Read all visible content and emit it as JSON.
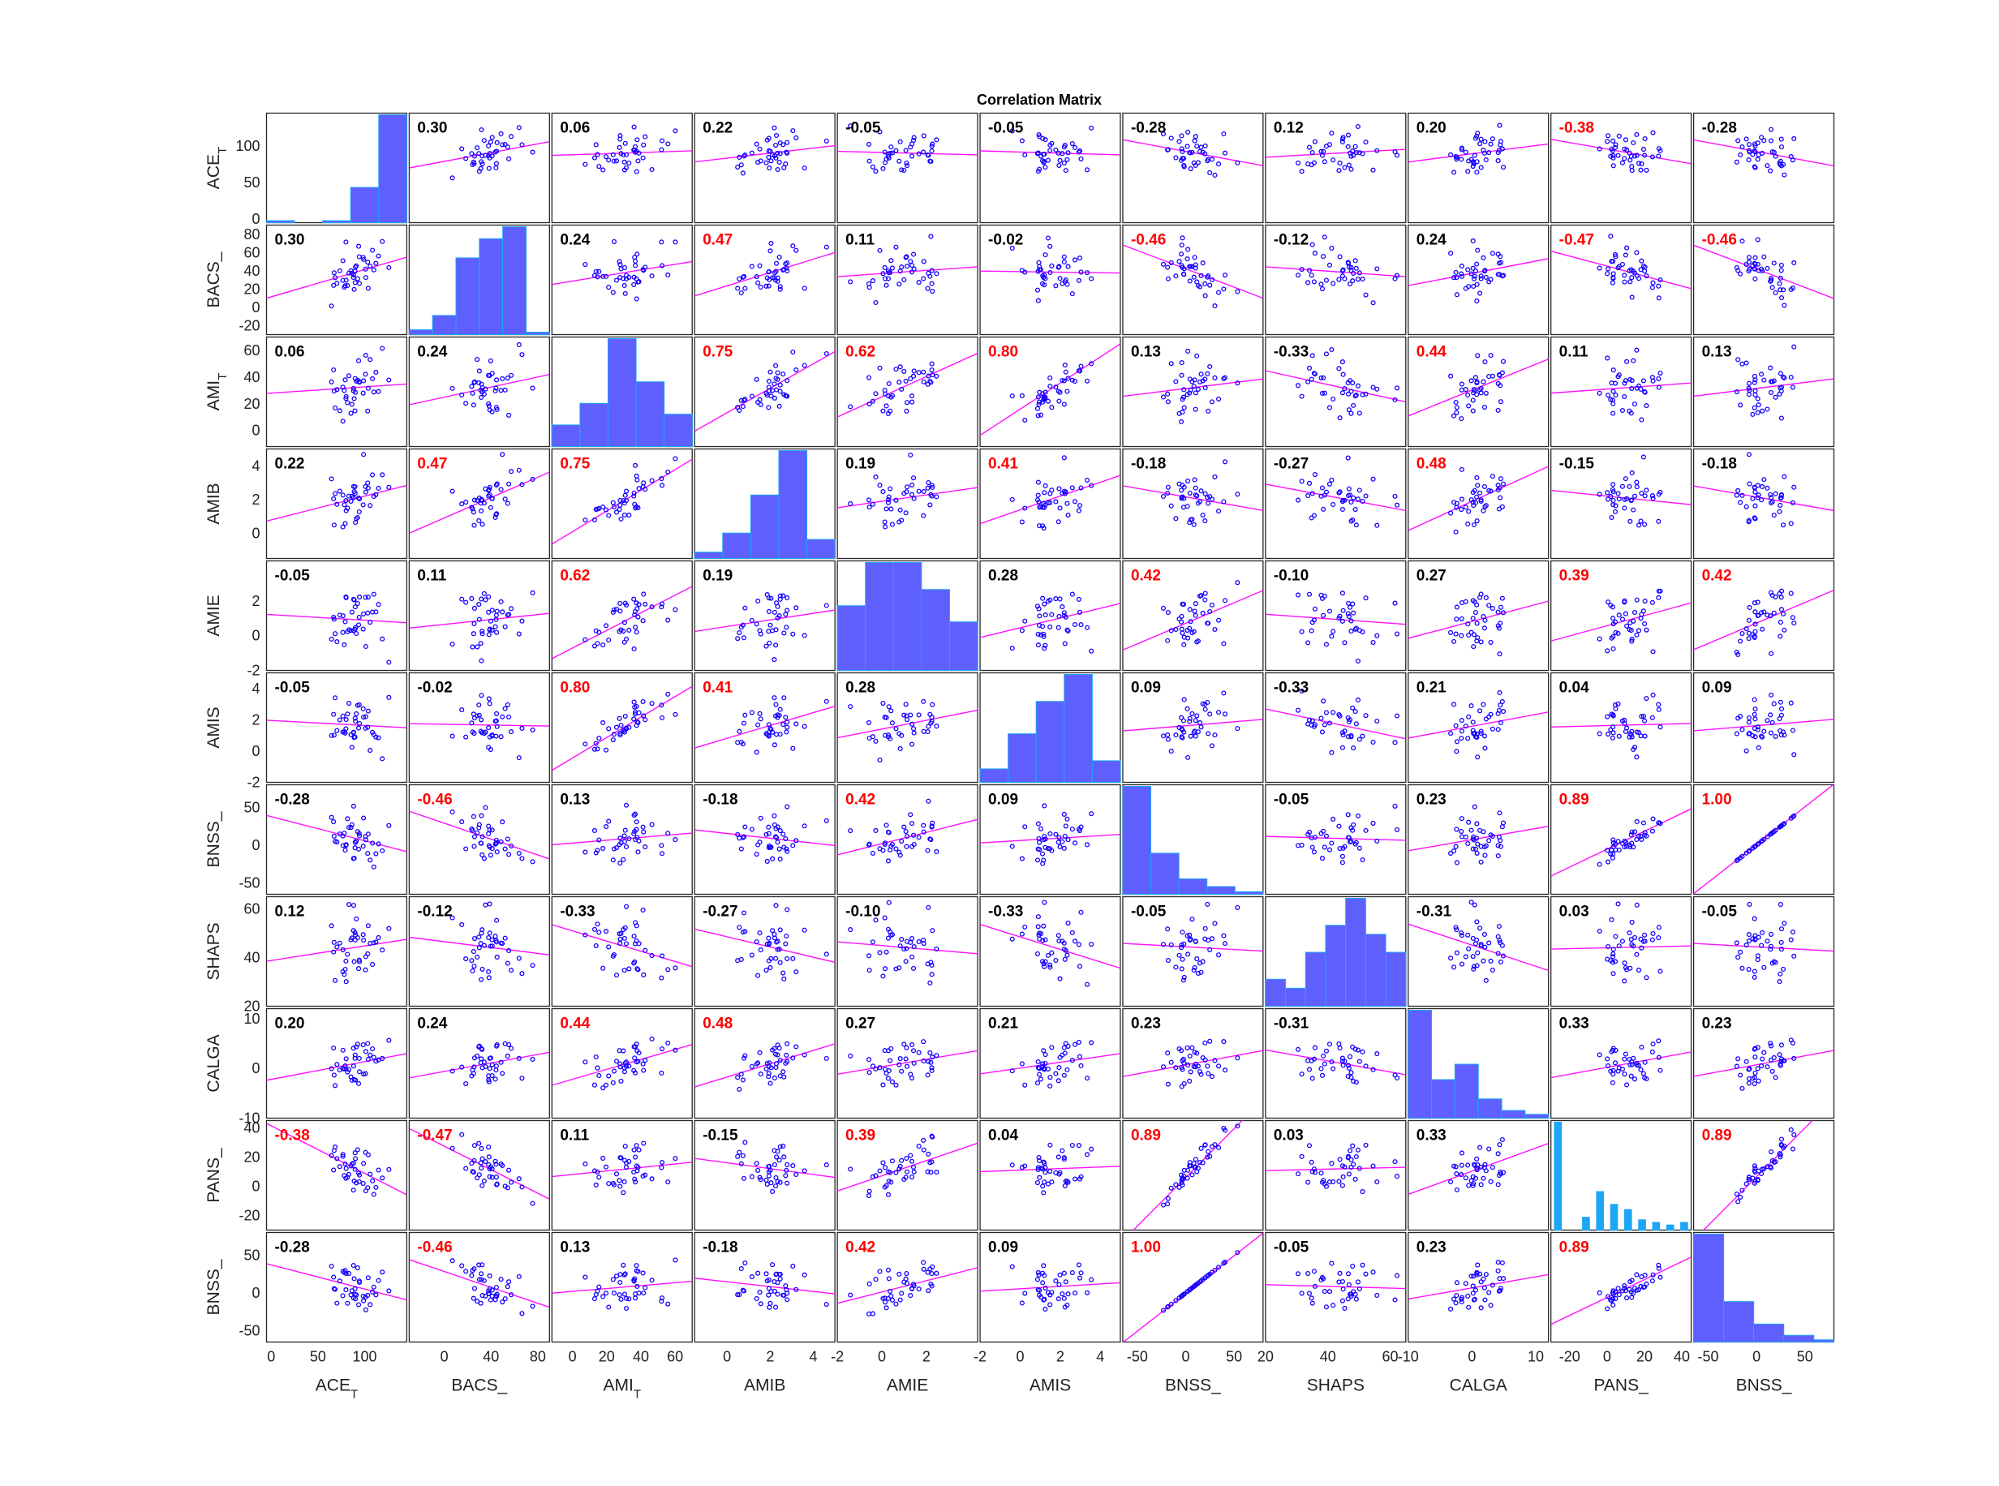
{
  "figure": {
    "title": "Correlation Matrix"
  },
  "chart_data": {
    "type": "scatter-matrix",
    "title": "Correlation Matrix",
    "variables": [
      {
        "name": "ACE_T",
        "base": "ACE",
        "sub": "T"
      },
      {
        "name": "BACS_",
        "base": "BACS_",
        "sub": ""
      },
      {
        "name": "AMI_T",
        "base": "AMI",
        "sub": "T"
      },
      {
        "name": "AMIB",
        "base": "AMIB",
        "sub": ""
      },
      {
        "name": "AMIE",
        "base": "AMIE",
        "sub": ""
      },
      {
        "name": "AMIS",
        "base": "AMIS",
        "sub": ""
      },
      {
        "name": "BNSS_",
        "base": "BNSS_",
        "sub": ""
      },
      {
        "name": "SHAPS",
        "base": "SHAPS",
        "sub": ""
      },
      {
        "name": "CALGA",
        "base": "CALGA",
        "sub": ""
      },
      {
        "name": "PANS_",
        "base": "PANS_",
        "sub": ""
      },
      {
        "name": "BNSS_",
        "base": "BNSS_",
        "sub": ""
      }
    ],
    "ranges": [
      [
        -5,
        145
      ],
      [
        -30,
        90
      ],
      [
        -12,
        70
      ],
      [
        -1.5,
        5
      ],
      [
        -2,
        4.3
      ],
      [
        -2,
        5
      ],
      [
        -65,
        80
      ],
      [
        20,
        65
      ],
      [
        -10,
        12
      ],
      [
        -30,
        45
      ],
      [
        -65,
        80
      ]
    ],
    "y_ticks": [
      [
        0,
        50,
        100
      ],
      [
        -20,
        0,
        20,
        40,
        60,
        80
      ],
      [
        0,
        20,
        40,
        60
      ],
      [
        0,
        2,
        4
      ],
      [
        -2,
        0,
        2
      ],
      [
        -2,
        0,
        2,
        4
      ],
      [
        -50,
        0,
        50
      ],
      [
        20,
        40,
        60
      ],
      [
        -10,
        0,
        10
      ],
      [
        -20,
        0,
        20,
        40
      ],
      [
        -50,
        0,
        50
      ]
    ],
    "x_ticks": [
      [
        0,
        50,
        100
      ],
      [
        0,
        40,
        80
      ],
      [
        0,
        20,
        40,
        60
      ],
      [
        0,
        2,
        4
      ],
      [
        -2,
        0,
        2
      ],
      [
        -2,
        0,
        2,
        4
      ],
      [
        -50,
        0,
        50
      ],
      [
        20,
        40,
        60
      ],
      [
        -10,
        0,
        10
      ],
      [
        -20,
        0,
        20,
        40
      ],
      [
        -50,
        0,
        50
      ]
    ],
    "correlations": [
      [
        "",
        "0.30",
        "0.06",
        "0.22",
        "-0.05",
        "-0.05",
        "-0.28",
        "0.12",
        "0.20",
        "-0.38",
        "-0.28"
      ],
      [
        "0.30",
        "",
        "0.24",
        "0.47",
        "0.11",
        "-0.02",
        "-0.46",
        "-0.12",
        "0.24",
        "-0.47",
        "-0.46"
      ],
      [
        "0.06",
        "0.24",
        "",
        "0.75",
        "0.62",
        "0.80",
        "0.13",
        "-0.33",
        "0.44",
        "0.11",
        "0.13"
      ],
      [
        "0.22",
        "0.47",
        "0.75",
        "",
        "0.19",
        "0.41",
        "-0.18",
        "-0.27",
        "0.48",
        "-0.15",
        "-0.18"
      ],
      [
        "-0.05",
        "0.11",
        "0.62",
        "0.19",
        "",
        "0.28",
        "0.42",
        "-0.10",
        "0.27",
        "0.39",
        "0.42"
      ],
      [
        "-0.05",
        "-0.02",
        "0.80",
        "0.41",
        "0.28",
        "",
        "0.09",
        "-0.33",
        "0.21",
        "0.04",
        "0.09"
      ],
      [
        "-0.28",
        "-0.46",
        "0.13",
        "-0.18",
        "0.42",
        "0.09",
        "",
        "-0.05",
        "0.23",
        "0.89",
        "1.00"
      ],
      [
        "0.12",
        "-0.12",
        "-0.33",
        "-0.27",
        "-0.10",
        "-0.33",
        "-0.05",
        "",
        "-0.31",
        "0.03",
        "-0.05"
      ],
      [
        "0.20",
        "0.24",
        "0.44",
        "0.48",
        "0.27",
        "0.21",
        "0.23",
        "-0.31",
        "",
        "0.33",
        "0.23"
      ],
      [
        "-0.38",
        "-0.47",
        "0.11",
        "-0.15",
        "0.39",
        "0.04",
        "0.89",
        "0.03",
        "0.33",
        "",
        "0.89"
      ],
      [
        "-0.28",
        "-0.46",
        "0.13",
        "-0.18",
        "0.42",
        "0.09",
        "1.00",
        "-0.05",
        "0.23",
        "0.89",
        ""
      ]
    ],
    "histograms": [
      {
        "edges": [
          0,
          25,
          50,
          75,
          100,
          125
        ],
        "counts": [
          1,
          0,
          1,
          18,
          55
        ]
      },
      {
        "edges": [
          -40,
          -20,
          0,
          20,
          40,
          60,
          80
        ],
        "counts": [
          2,
          8,
          32,
          40,
          45,
          1
        ]
      },
      {
        "edges": [
          10,
          20,
          30,
          40,
          50,
          60
        ],
        "counts": [
          2,
          4,
          10,
          6,
          3
        ]
      },
      {
        "edges": [
          -1,
          0,
          1,
          2,
          3,
          4
        ],
        "counts": [
          2,
          8,
          20,
          34,
          6
        ]
      },
      {
        "edges": [
          -1.5,
          -0.5,
          0.5,
          1.5,
          2.5,
          3.5
        ],
        "counts": [
          12,
          20,
          20,
          15,
          9
        ]
      },
      {
        "edges": [
          -1,
          0,
          1,
          2,
          3,
          4
        ],
        "counts": [
          5,
          18,
          30,
          40,
          8
        ]
      },
      {
        "edges": [
          -35,
          -10,
          15,
          40,
          65,
          90
        ],
        "counts": [
          42,
          16,
          6,
          3,
          1
        ]
      },
      {
        "edges": [
          25,
          30,
          35,
          40,
          45,
          50,
          55,
          60
        ],
        "counts": [
          3,
          2,
          6,
          9,
          12,
          8,
          6
        ]
      },
      {
        "edges": [
          -9,
          -6,
          -3,
          0,
          3,
          6,
          9
        ],
        "counts": [
          28,
          10,
          14,
          5,
          2,
          1
        ]
      },
      {
        "edges": [
          -15,
          -10,
          -5,
          0,
          5,
          10,
          15,
          20,
          25,
          30,
          35
        ],
        "counts": [
          42,
          0,
          5,
          15,
          10,
          8,
          4,
          3,
          2,
          3
        ]
      },
      {
        "edges": [
          -50,
          -20,
          10,
          40,
          70,
          90
        ],
        "counts": [
          48,
          18,
          8,
          3,
          1
        ]
      }
    ],
    "colors": {
      "marker": "#1400ff",
      "fit_line": "#ff10ff",
      "hist_fill": "#5f5ffd",
      "hist_fill_narrow": "#1ca6f6",
      "hist_edge": "#1ca6f6",
      "corr_significant": "#ff0000",
      "corr_normal": "#000000"
    },
    "significance_threshold": 0.38,
    "grid": false
  }
}
